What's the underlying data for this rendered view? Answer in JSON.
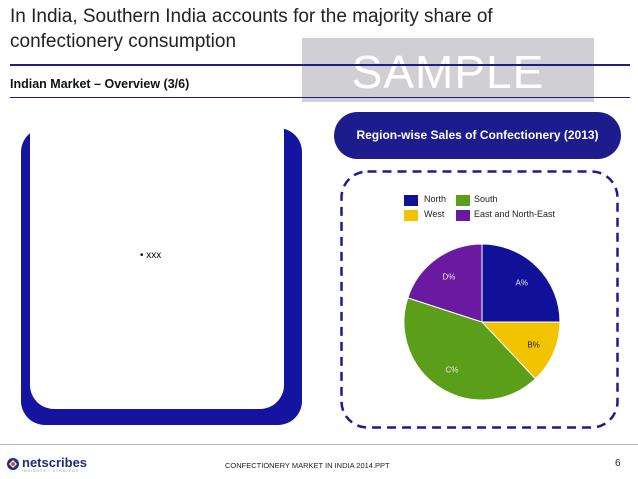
{
  "slide": {
    "title": "In India, Southern India accounts for the majority share of confectionery consumption",
    "watermark": "SAMPLE",
    "subtitle": "Indian Market – Overview (3/6)"
  },
  "left_panel": {
    "bullet": "• xxx"
  },
  "chart_panel": {
    "heading": "Region-wise Sales of Confectionery (2013)"
  },
  "chart_data": {
    "type": "pie",
    "legend": [
      "North",
      "South",
      "West",
      "East and North-East"
    ],
    "slices": [
      {
        "name": "North",
        "label": "A%",
        "value": 25,
        "color": "#101098"
      },
      {
        "name": "West",
        "label": "B%",
        "value": 13,
        "color": "#f2c400"
      },
      {
        "name": "South",
        "label": "C%",
        "value": 42,
        "color": "#5a9e1a"
      },
      {
        "name": "East and North-East",
        "label": "D%",
        "value": 20,
        "color": "#6a1aa0"
      }
    ]
  },
  "footer": {
    "logo_text": "netscribes",
    "logo_tagline": "INSIGHTS · STRATEGY",
    "document_name": "CONFECTIONERY MARKET IN INDIA 2014.PPT",
    "page_number": "6"
  },
  "colors": {
    "navy": "#1c1c8c",
    "left_panel_shadow": "#1414a0",
    "watermark_box": "#c8c8cd"
  }
}
